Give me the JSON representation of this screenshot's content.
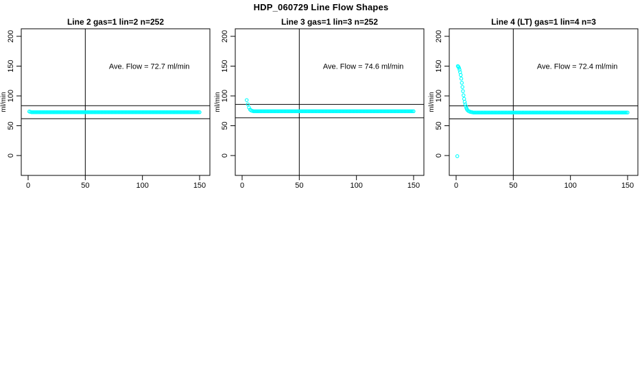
{
  "page": {
    "title": "HDP_060729  Line Flow Shapes"
  },
  "chart_data": [
    {
      "type": "scatter",
      "title": "Line 2 gas=1 lin=2 n=252",
      "annotation": "Ave. Flow =  72.7  ml/min",
      "ave_flow_ml_min": 72.7,
      "n": 252,
      "ylabel": "ml/min",
      "xlim": [
        0,
        150
      ],
      "ylim": [
        0,
        200
      ],
      "x_ticks": [
        0,
        50,
        100,
        150
      ],
      "y_ticks": [
        0,
        50,
        100,
        150,
        200
      ],
      "grid": false,
      "legend": "none",
      "vline_x": 50,
      "hlines": [
        83.6,
        61.8
      ],
      "marker": "open-circle",
      "marker_color": "#00FFFF",
      "transient_points": [
        [
          1,
          73.8
        ],
        [
          2,
          73.2
        ]
      ],
      "steady_run": {
        "x_from": 3,
        "x_to": 150,
        "x_step": 1,
        "y": 72.7
      }
    },
    {
      "type": "scatter",
      "title": "Line 3 gas=1 lin=3 n=252",
      "annotation": "Ave. Flow =  74.6  ml/min",
      "ave_flow_ml_min": 74.6,
      "n": 252,
      "ylabel": "ml/min",
      "xlim": [
        0,
        150
      ],
      "ylim": [
        0,
        200
      ],
      "x_ticks": [
        0,
        50,
        100,
        150
      ],
      "y_ticks": [
        0,
        50,
        100,
        150,
        200
      ],
      "grid": false,
      "legend": "none",
      "vline_x": 50,
      "hlines": [
        85.8,
        63.4
      ],
      "marker": "open-circle",
      "marker_color": "#00FFFF",
      "transient_points": [
        [
          4,
          93
        ],
        [
          5,
          86
        ],
        [
          6,
          80.5
        ],
        [
          7,
          77
        ],
        [
          8,
          75.5
        ],
        [
          9,
          74.8
        ]
      ],
      "steady_run": {
        "x_from": 10,
        "x_to": 150,
        "x_step": 1,
        "y": 74.3
      }
    },
    {
      "type": "scatter",
      "title": "Line 4 (LT) gas=1 lin=4 n=3",
      "annotation": "Ave. Flow =  72.4  ml/min",
      "ave_flow_ml_min": 72.4,
      "n": 3,
      "ylabel": "ml/min",
      "xlim": [
        0,
        150
      ],
      "ylim": [
        0,
        200
      ],
      "x_ticks": [
        0,
        50,
        100,
        150
      ],
      "y_ticks": [
        0,
        50,
        100,
        150,
        200
      ],
      "grid": false,
      "legend": "none",
      "vline_x": 50,
      "hlines": [
        83.3,
        61.5
      ],
      "marker": "open-circle",
      "marker_color": "#00FFFF",
      "transient_points": [
        [
          1,
          -1
        ],
        [
          1.5,
          150
        ],
        [
          2,
          149
        ],
        [
          2.5,
          147
        ],
        [
          3,
          144
        ],
        [
          3.5,
          140
        ],
        [
          4,
          135
        ],
        [
          4.5,
          129
        ],
        [
          5,
          122
        ],
        [
          5.5,
          115
        ],
        [
          6,
          108
        ],
        [
          6.5,
          101
        ],
        [
          7,
          95
        ],
        [
          7.5,
          90
        ],
        [
          8,
          86
        ],
        [
          8.5,
          82.5
        ],
        [
          9,
          79.5
        ],
        [
          9.5,
          77.5
        ],
        [
          10,
          76
        ],
        [
          11,
          74.5
        ],
        [
          12,
          73.6
        ],
        [
          13,
          73
        ],
        [
          14,
          72.6
        ]
      ],
      "steady_run": {
        "x_from": 15,
        "x_to": 150,
        "x_step": 1,
        "y": 72.2
      }
    }
  ]
}
